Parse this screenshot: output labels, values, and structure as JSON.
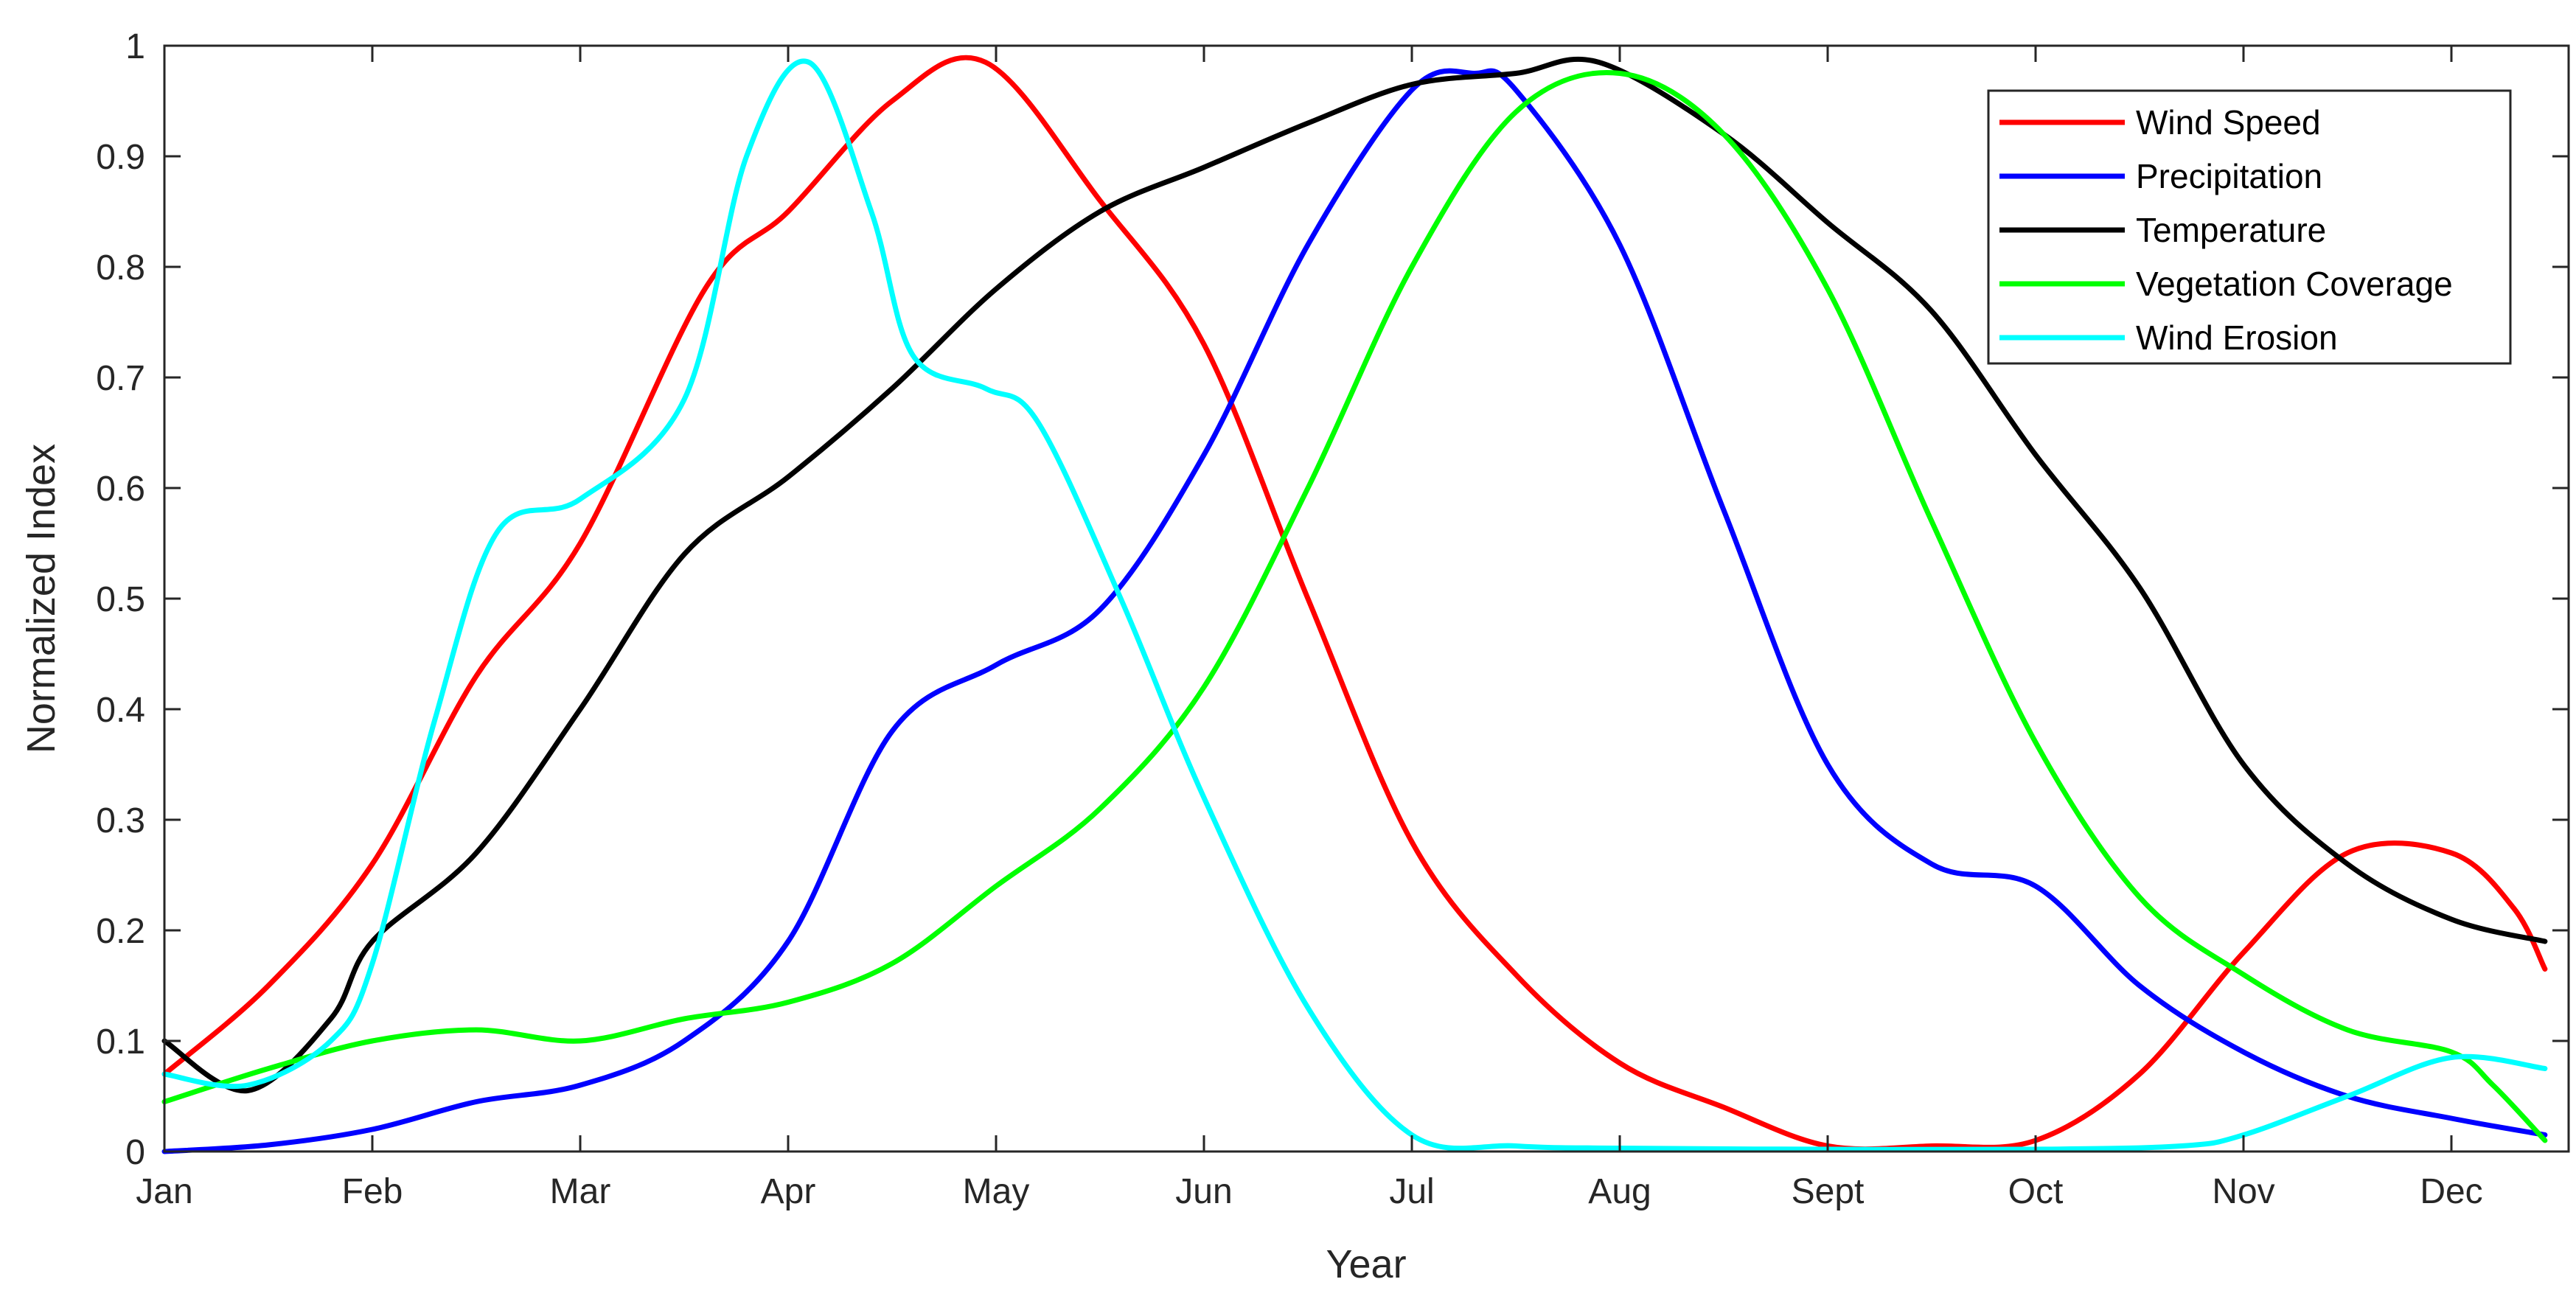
{
  "chart_data": {
    "type": "line",
    "title": "",
    "xlabel": "Year",
    "ylabel": "Normalized Index",
    "xlim": [
      0,
      11.45
    ],
    "ylim": [
      0,
      1
    ],
    "x_ticks": [
      0,
      1,
      2,
      3,
      4,
      5,
      6,
      7,
      8,
      9,
      10,
      11
    ],
    "x_tick_labels": [
      "Jan",
      "Feb",
      "Mar",
      "Apr",
      "May",
      "Jun",
      "Jul",
      "Aug",
      "Sept",
      "Oct",
      "Nov",
      "Dec"
    ],
    "y_ticks": [
      0,
      0.1,
      0.2,
      0.3,
      0.4,
      0.5,
      0.6,
      0.7,
      0.8,
      0.9,
      1
    ],
    "y_tick_labels": [
      "0",
      "0.1",
      "0.2",
      "0.3",
      "0.4",
      "0.5",
      "0.6",
      "0.7",
      "0.8",
      "0.9",
      "1"
    ],
    "grid": false,
    "legend_position": "top-right",
    "series": [
      {
        "name": "Wind Speed",
        "color": "#ff0000",
        "x": [
          0,
          0.5,
          1,
          1.5,
          2,
          2.6,
          3,
          3.5,
          3.95,
          4.5,
          5,
          5.5,
          6,
          6.5,
          7,
          7.5,
          8,
          8.5,
          9,
          9.5,
          10,
          10.5,
          11,
          11.3,
          11.45
        ],
        "y": [
          0.07,
          0.15,
          0.26,
          0.43,
          0.55,
          0.78,
          0.85,
          0.95,
          0.985,
          0.86,
          0.73,
          0.5,
          0.28,
          0.16,
          0.08,
          0.04,
          0.005,
          0.005,
          0.01,
          0.07,
          0.18,
          0.27,
          0.27,
          0.22,
          0.165
        ]
      },
      {
        "name": "Precipitation",
        "color": "#0000ff",
        "x": [
          0,
          0.5,
          1,
          1.5,
          2,
          2.5,
          3,
          3.5,
          4,
          4.5,
          5,
          5.5,
          6,
          6.3,
          6.5,
          7,
          7.5,
          8,
          8.5,
          9,
          9.5,
          10,
          10.5,
          11,
          11.45
        ],
        "y": [
          0,
          0.006,
          0.02,
          0.045,
          0.06,
          0.1,
          0.19,
          0.38,
          0.44,
          0.49,
          0.63,
          0.82,
          0.96,
          0.975,
          0.96,
          0.82,
          0.58,
          0.35,
          0.26,
          0.24,
          0.15,
          0.09,
          0.05,
          0.03,
          0.015
        ]
      },
      {
        "name": "Temperature",
        "color": "#000000",
        "x": [
          0,
          0.4,
          0.8,
          1,
          1.5,
          2,
          2.5,
          3,
          3.5,
          4,
          4.5,
          5,
          5.5,
          6,
          6.5,
          6.9,
          7.5,
          8,
          8.5,
          9,
          9.5,
          10,
          10.5,
          11,
          11.45
        ],
        "y": [
          0.1,
          0.055,
          0.12,
          0.19,
          0.27,
          0.4,
          0.54,
          0.61,
          0.69,
          0.78,
          0.85,
          0.89,
          0.93,
          0.965,
          0.975,
          0.985,
          0.92,
          0.84,
          0.76,
          0.63,
          0.51,
          0.35,
          0.26,
          0.21,
          0.19
        ]
      },
      {
        "name": "Vegetation Coverage",
        "color": "#00ff00",
        "x": [
          0,
          0.5,
          1,
          1.5,
          2,
          2.5,
          3,
          3.5,
          4,
          4.5,
          5,
          5.5,
          6,
          6.5,
          7,
          7.5,
          8,
          8.5,
          9,
          9.5,
          10,
          10.5,
          11,
          11.2,
          11.45
        ],
        "y": [
          0.045,
          0.075,
          0.1,
          0.11,
          0.1,
          0.12,
          0.135,
          0.17,
          0.24,
          0.31,
          0.42,
          0.6,
          0.8,
          0.94,
          0.975,
          0.92,
          0.78,
          0.57,
          0.37,
          0.23,
          0.16,
          0.11,
          0.09,
          0.06,
          0.01
        ]
      },
      {
        "name": "Wind Erosion",
        "color": "#00ffff",
        "x": [
          0,
          0.4,
          0.8,
          1,
          1.3,
          1.6,
          2,
          2.5,
          2.8,
          3.1,
          3.4,
          3.6,
          3.95,
          4.2,
          4.6,
          5,
          5.5,
          6,
          6.5,
          7,
          8,
          9,
          9.7,
          10,
          10.5,
          11,
          11.45
        ],
        "y": [
          0.07,
          0.06,
          0.1,
          0.17,
          0.39,
          0.56,
          0.59,
          0.68,
          0.9,
          0.985,
          0.85,
          0.72,
          0.69,
          0.66,
          0.5,
          0.32,
          0.13,
          0.015,
          0.005,
          0.003,
          0.002,
          0.002,
          0.005,
          0.015,
          0.05,
          0.085,
          0.075
        ]
      }
    ]
  }
}
